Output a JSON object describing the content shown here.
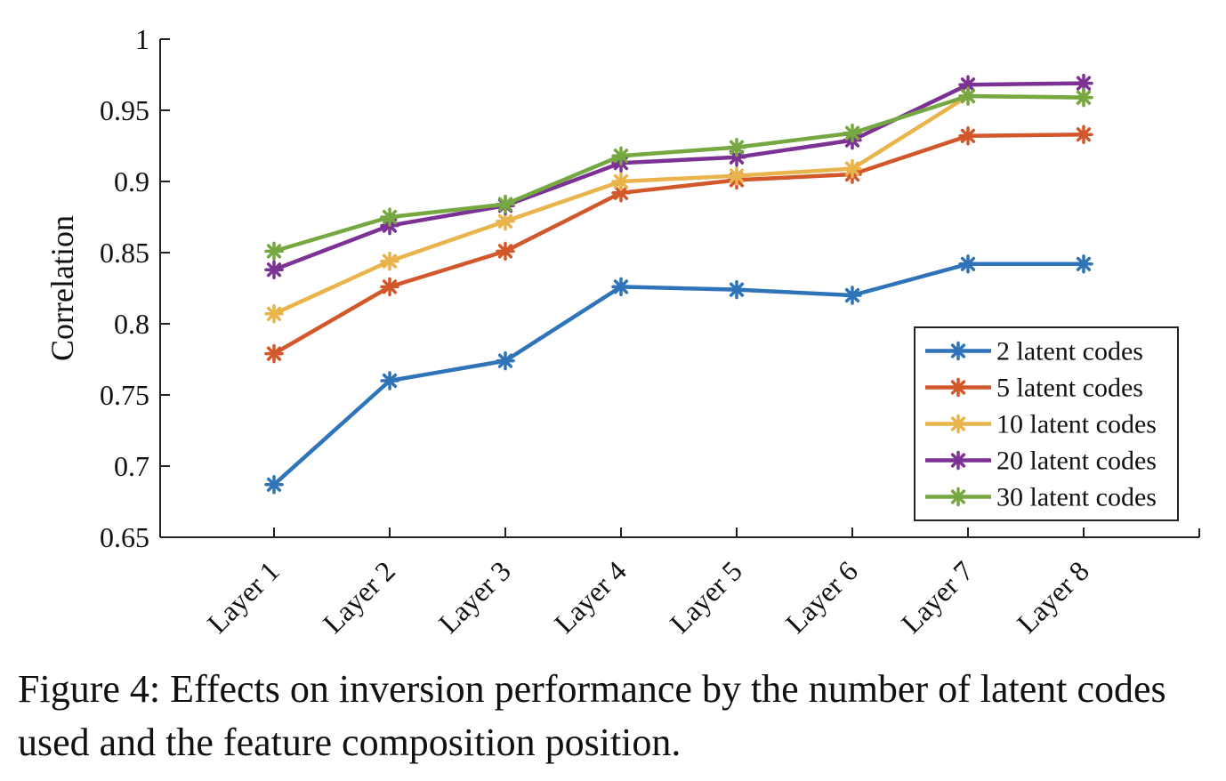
{
  "chart_data": {
    "type": "line",
    "ylabel": "Correlation",
    "ylim": [
      0.65,
      1
    ],
    "yticks": [
      "0.65",
      "0.7",
      "0.75",
      "0.8",
      "0.85",
      "0.9",
      "0.95",
      "1"
    ],
    "categories": [
      "Layer 1",
      "Layer 2",
      "Layer 3",
      "Layer 4",
      "Layer 5",
      "Layer 6",
      "Layer 7",
      "Layer 8"
    ],
    "grid": false,
    "legend_position": "bottom-right",
    "marker": "asterisk",
    "series": [
      {
        "name": "2 latent codes",
        "color": "#2f74b8",
        "values": [
          0.687,
          0.76,
          0.774,
          0.826,
          0.824,
          0.82,
          0.842,
          0.842
        ]
      },
      {
        "name": "5 latent codes",
        "color": "#d2572a",
        "values": [
          0.779,
          0.826,
          0.851,
          0.892,
          0.901,
          0.905,
          0.932,
          0.933
        ]
      },
      {
        "name": "10 latent codes",
        "color": "#e9b44c",
        "values": [
          0.807,
          0.844,
          0.872,
          0.9,
          0.904,
          0.909,
          0.96,
          0.959
        ]
      },
      {
        "name": "20 latent codes",
        "color": "#7b3294",
        "values": [
          0.838,
          0.869,
          0.883,
          0.913,
          0.917,
          0.929,
          0.968,
          0.969
        ]
      },
      {
        "name": "30 latent codes",
        "color": "#76a842",
        "values": [
          0.851,
          0.875,
          0.884,
          0.918,
          0.924,
          0.934,
          0.96,
          0.959
        ]
      }
    ]
  },
  "caption": "Figure 4: Effects on inversion performance by the number of latent codes used and the feature composition position."
}
